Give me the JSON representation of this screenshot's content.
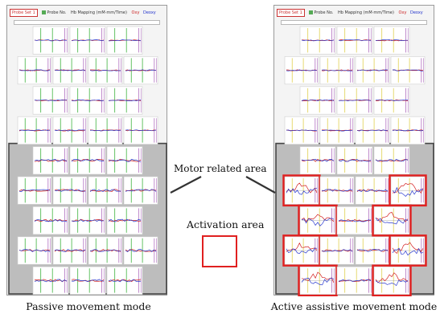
{
  "toolbar": {
    "button_label": "Probe Set 1",
    "probe_label": "Probe No.",
    "mapping_label": "Hb Mapping (mM·mm/Time)",
    "oxy_label": "Oxy",
    "deoxy_label": "Deoxy"
  },
  "labels": {
    "motor_related_area": "Motor related area",
    "activation_area": "Activation area",
    "passive_mode": "Passive movement mode",
    "active_mode": "Active assistive movement mode"
  },
  "colors": {
    "oxy": "#d42020",
    "deoxy": "#2a3ad0",
    "highlight": "#e02020",
    "marker_left": "#3fb33f",
    "marker_right_panel": "#e0d050",
    "marker_purple": "#b070c0"
  },
  "grid": {
    "rows": [
      3,
      4,
      3,
      4,
      3,
      4,
      3,
      4,
      3
    ],
    "motor_area_start_row": 4
  },
  "panels": [
    {
      "id": "passive",
      "highlights": []
    },
    {
      "id": "active",
      "highlights": [
        {
          "row": 5,
          "col": 0
        },
        {
          "row": 5,
          "col": 3
        },
        {
          "row": 6,
          "col": 0
        },
        {
          "row": 6,
          "col": 2
        },
        {
          "row": 7,
          "col": 0
        },
        {
          "row": 7,
          "col": 3
        },
        {
          "row": 8,
          "col": 0
        },
        {
          "row": 8,
          "col": 2
        }
      ]
    }
  ]
}
